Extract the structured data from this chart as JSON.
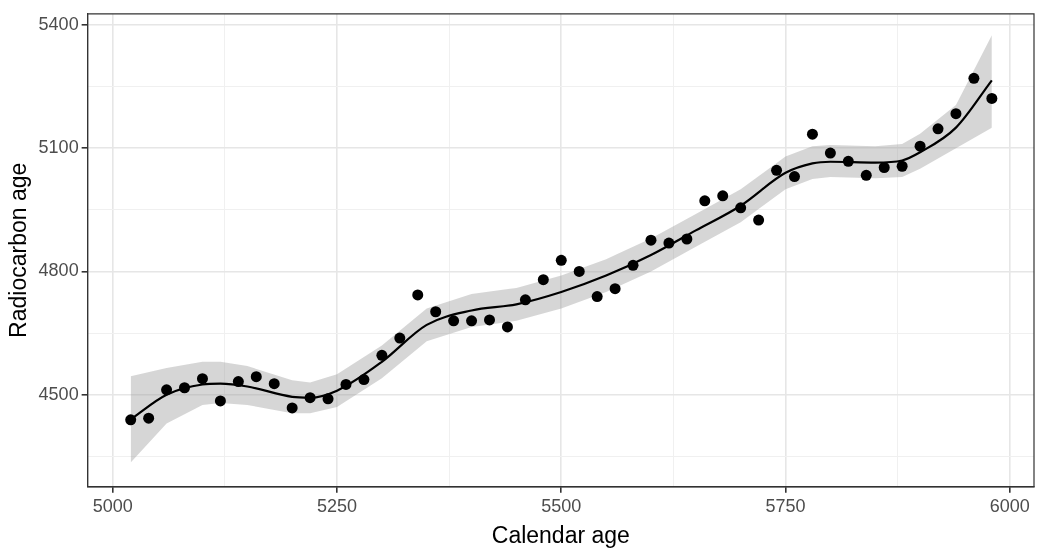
{
  "chart_data": {
    "type": "scatter",
    "xlabel": "Calendar age",
    "ylabel": "Radiocarbon age",
    "xlim": [
      4972,
      6027
    ],
    "ylim": [
      4276,
      5427
    ],
    "xticks": [
      5000,
      {
        "value": 5125,
        "label": null
      },
      5250,
      {
        "value": 5375,
        "label": null
      },
      5500,
      {
        "value": 5625,
        "label": null
      },
      5750,
      {
        "value": 5875,
        "label": null
      },
      6000
    ],
    "yticks": [
      {
        "value": 4350,
        "label": null
      },
      4500,
      {
        "value": 4650,
        "label": null
      },
      4800,
      {
        "value": 4950,
        "label": null
      },
      5100,
      {
        "value": 5250,
        "label": null
      },
      5400
    ],
    "grid": true,
    "series": [
      {
        "marker": "circle",
        "color": "#000000",
        "x": [
          5020,
          5040,
          5060,
          5080,
          5100,
          5120,
          5140,
          5160,
          5180,
          5200,
          5220,
          5240,
          5260,
          5280,
          5300,
          5320,
          5340,
          5360,
          5380,
          5400,
          5420,
          5440,
          5460,
          5480,
          5500,
          5520,
          5540,
          5560,
          5580,
          5600,
          5620,
          5640,
          5660,
          5680,
          5700,
          5720,
          5740,
          5760,
          5780,
          5800,
          5820,
          5840,
          5860,
          5880,
          5900,
          5920,
          5940,
          5960,
          5980
        ],
        "values": [
          4439,
          4443,
          4512,
          4517,
          4539,
          4485,
          4532,
          4544,
          4527,
          4468,
          4493,
          4490,
          4525,
          4537,
          4596,
          4638,
          4743,
          4702,
          4680,
          4680,
          4682,
          4665,
          4731,
          4780,
          4827,
          4800,
          4739,
          4758,
          4815,
          4876,
          4869,
          4879,
          4972,
          4984,
          4955,
          4925,
          5046,
          5031,
          5134,
          5088,
          5068,
          5034,
          5053,
          5056,
          5105,
          5147,
          5184,
          5270,
          5221
        ]
      },
      {
        "type": "line",
        "marker": "none",
        "color": "#000000",
        "x": [
          5020,
          5060,
          5100,
          5120,
          5150,
          5200,
          5220,
          5250,
          5300,
          5350,
          5400,
          5450,
          5500,
          5550,
          5600,
          5650,
          5700,
          5750,
          5780,
          5800,
          5850,
          5880,
          5900,
          5940,
          5980
        ],
        "values": [
          4440,
          4500,
          4525,
          4527,
          4520,
          4495,
          4493,
          4510,
          4580,
          4670,
          4705,
          4720,
          4750,
          4790,
          4840,
          4900,
          4960,
          5040,
          5063,
          5067,
          5065,
          5070,
          5090,
          5150,
          5265
        ],
        "lower": [
          4335,
          4430,
          4475,
          4480,
          4475,
          4455,
          4455,
          4470,
          4540,
          4630,
          4665,
          4680,
          4710,
          4750,
          4800,
          4860,
          4920,
          5000,
          5025,
          5030,
          5027,
          5030,
          5050,
          5100,
          5150
        ],
        "upper": [
          4545,
          4565,
          4580,
          4580,
          4570,
          4535,
          4530,
          4550,
          4620,
          4710,
          4745,
          4760,
          4790,
          4830,
          4880,
          4940,
          5000,
          5080,
          5105,
          5108,
          5105,
          5110,
          5135,
          5205,
          5375
        ]
      }
    ]
  }
}
